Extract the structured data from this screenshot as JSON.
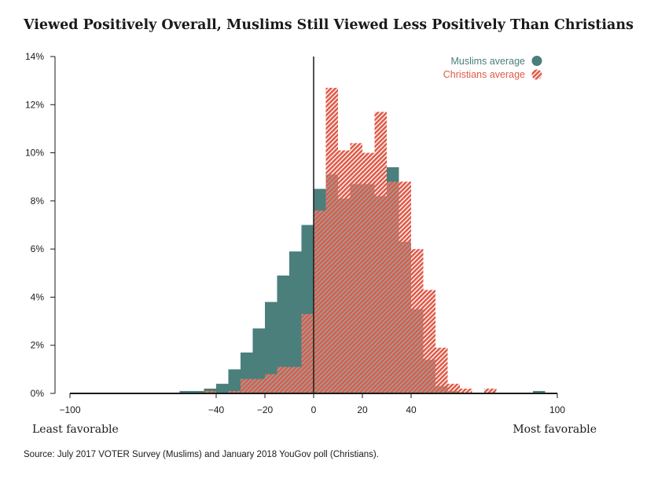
{
  "chart_data": {
    "type": "bar",
    "title": "Viewed Positively Overall, Muslims Still Viewed Less Positively Than Christians",
    "xlabel": "",
    "ylabel": "",
    "xlim": [
      -100,
      100
    ],
    "ylim": [
      0,
      14
    ],
    "x_ticks": [
      {
        "value": -100,
        "label": "−100"
      },
      {
        "value": -40,
        "label": "−40"
      },
      {
        "value": -20,
        "label": "−20"
      },
      {
        "value": 0,
        "label": "0"
      },
      {
        "value": 20,
        "label": "20"
      },
      {
        "value": 40,
        "label": "40"
      },
      {
        "value": 100,
        "label": "100"
      }
    ],
    "y_ticks": [
      {
        "value": 0,
        "label": "0%"
      },
      {
        "value": 2,
        "label": "2%"
      },
      {
        "value": 4,
        "label": "4%"
      },
      {
        "value": 6,
        "label": "6%"
      },
      {
        "value": 8,
        "label": "8%"
      },
      {
        "value": 10,
        "label": "10%"
      },
      {
        "value": 12,
        "label": "12%"
      },
      {
        "value": 14,
        "label": "14%"
      }
    ],
    "grid": false,
    "legend": "top-right",
    "end_labels": {
      "left": "Least favorable",
      "right": "Most favorable"
    },
    "series": [
      {
        "name": "Muslims average",
        "color": "#4a7f7c",
        "pattern": "solid",
        "bins": [
          {
            "x0": -55,
            "x1": -50,
            "value": 0.1
          },
          {
            "x0": -50,
            "x1": -45,
            "value": 0.1
          },
          {
            "x0": -45,
            "x1": -40,
            "value": 0.2
          },
          {
            "x0": -40,
            "x1": -35,
            "value": 0.4
          },
          {
            "x0": -35,
            "x1": -30,
            "value": 1.0
          },
          {
            "x0": -30,
            "x1": -25,
            "value": 1.7
          },
          {
            "x0": -25,
            "x1": -20,
            "value": 2.7
          },
          {
            "x0": -20,
            "x1": -15,
            "value": 3.8
          },
          {
            "x0": -15,
            "x1": -10,
            "value": 4.9
          },
          {
            "x0": -10,
            "x1": -5,
            "value": 5.9
          },
          {
            "x0": -5,
            "x1": 0,
            "value": 7.0
          },
          {
            "x0": 0,
            "x1": 5,
            "value": 8.5
          },
          {
            "x0": 5,
            "x1": 10,
            "value": 9.1
          },
          {
            "x0": 10,
            "x1": 15,
            "value": 8.1
          },
          {
            "x0": 15,
            "x1": 20,
            "value": 8.7
          },
          {
            "x0": 20,
            "x1": 25,
            "value": 8.7
          },
          {
            "x0": 25,
            "x1": 30,
            "value": 8.2
          },
          {
            "x0": 30,
            "x1": 35,
            "value": 9.4
          },
          {
            "x0": 35,
            "x1": 40,
            "value": 6.3
          },
          {
            "x0": 40,
            "x1": 45,
            "value": 3.5
          },
          {
            "x0": 45,
            "x1": 50,
            "value": 1.4
          },
          {
            "x0": 50,
            "x1": 55,
            "value": 0.3
          },
          {
            "x0": 55,
            "x1": 60,
            "value": 0.1
          },
          {
            "x0": 90,
            "x1": 95,
            "value": 0.1
          }
        ]
      },
      {
        "name": "Christians average",
        "color": "#e05a47",
        "pattern": "hatched",
        "bins": [
          {
            "x0": -45,
            "x1": -40,
            "value": 0.1
          },
          {
            "x0": -35,
            "x1": -30,
            "value": 0.1
          },
          {
            "x0": -30,
            "x1": -25,
            "value": 0.6
          },
          {
            "x0": -25,
            "x1": -20,
            "value": 0.6
          },
          {
            "x0": -20,
            "x1": -15,
            "value": 0.8
          },
          {
            "x0": -15,
            "x1": -10,
            "value": 1.1
          },
          {
            "x0": -10,
            "x1": -5,
            "value": 1.1
          },
          {
            "x0": -5,
            "x1": 0,
            "value": 3.3
          },
          {
            "x0": 0,
            "x1": 5,
            "value": 7.6
          },
          {
            "x0": 5,
            "x1": 10,
            "value": 12.7
          },
          {
            "x0": 10,
            "x1": 15,
            "value": 10.1
          },
          {
            "x0": 15,
            "x1": 20,
            "value": 10.4
          },
          {
            "x0": 20,
            "x1": 25,
            "value": 10.0
          },
          {
            "x0": 25,
            "x1": 30,
            "value": 11.7
          },
          {
            "x0": 30,
            "x1": 35,
            "value": 8.8
          },
          {
            "x0": 35,
            "x1": 40,
            "value": 8.8
          },
          {
            "x0": 40,
            "x1": 45,
            "value": 6.0
          },
          {
            "x0": 45,
            "x1": 50,
            "value": 4.3
          },
          {
            "x0": 50,
            "x1": 55,
            "value": 1.9
          },
          {
            "x0": 55,
            "x1": 60,
            "value": 0.4
          },
          {
            "x0": 60,
            "x1": 65,
            "value": 0.2
          },
          {
            "x0": 70,
            "x1": 75,
            "value": 0.2
          }
        ]
      }
    ]
  },
  "source": "Source: July 2017 VOTER Survey (Muslims) and January 2018 YouGov poll (Christians)."
}
